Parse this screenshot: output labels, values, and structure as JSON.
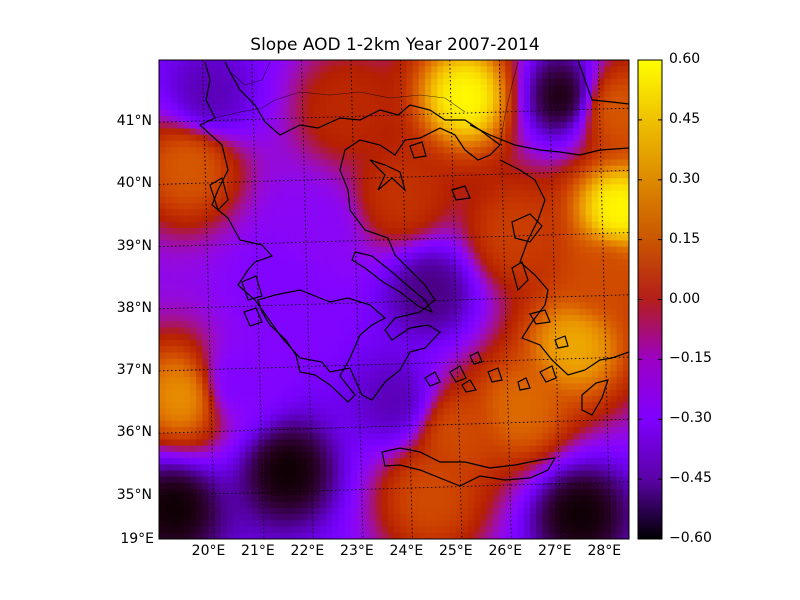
{
  "chart_data": {
    "type": "heatmap",
    "title": "Slope AOD 1-2km Year 2007-2014",
    "xlabel": "",
    "ylabel": "",
    "x_tick_labels": [
      "19°E",
      "20°E",
      "21°E",
      "22°E",
      "23°E",
      "24°E",
      "25°E",
      "26°E",
      "27°E",
      "28°E"
    ],
    "y_tick_labels": [
      "35°N",
      "36°N",
      "37°N",
      "38°N",
      "39°N",
      "40°N",
      "41°N"
    ],
    "x_range": [
      19.0,
      28.5
    ],
    "y_range": [
      34.3,
      42.0
    ],
    "colorbar": {
      "colormap": "gnuplot",
      "range": [
        -0.6,
        0.6
      ],
      "tick_labels": [
        "0.60",
        "0.45",
        "0.30",
        "0.15",
        "0.00",
        "−0.15",
        "−0.30",
        "−0.45",
        "−0.60"
      ]
    },
    "grid": true,
    "field_features": [
      {
        "lon": 19.3,
        "lat": 34.8,
        "value": -0.6
      },
      {
        "lon": 21.6,
        "lat": 35.4,
        "value": -0.6
      },
      {
        "lon": 27.5,
        "lat": 34.7,
        "value": -0.6
      },
      {
        "lon": 27.2,
        "lat": 41.4,
        "value": -0.6
      },
      {
        "lon": 20.0,
        "lat": 41.4,
        "value": -0.45
      },
      {
        "lon": 24.5,
        "lat": 38.3,
        "value": -0.5
      },
      {
        "lon": 23.8,
        "lat": 36.5,
        "value": -0.45
      },
      {
        "lon": 25.2,
        "lat": 41.4,
        "value": 0.6
      },
      {
        "lon": 28.3,
        "lat": 39.6,
        "value": 0.6
      },
      {
        "lon": 27.4,
        "lat": 37.4,
        "value": 0.45
      },
      {
        "lon": 19.5,
        "lat": 36.6,
        "value": 0.4
      },
      {
        "lon": 19.6,
        "lat": 40.3,
        "value": 0.25
      },
      {
        "lon": 25.0,
        "lat": 36.0,
        "value": 0.2
      },
      {
        "lon": 26.3,
        "lat": 36.4,
        "value": 0.3
      },
      {
        "lon": 23.9,
        "lat": 39.8,
        "value": 0.1
      },
      {
        "lon": 22.8,
        "lat": 41.2,
        "value": 0.05
      },
      {
        "lon": 26.2,
        "lat": 39.2,
        "value": 0.15
      },
      {
        "lon": 28.0,
        "lat": 38.5,
        "value": 0.2
      },
      {
        "lon": 28.2,
        "lat": 41.2,
        "value": 0.25
      },
      {
        "lon": 24.5,
        "lat": 35.0,
        "value": 0.2
      },
      {
        "lon": 21.5,
        "lat": 38.3,
        "value": -0.3
      },
      {
        "lon": 20.5,
        "lat": 36.8,
        "value": -0.3
      },
      {
        "lon": 22.2,
        "lat": 39.3,
        "value": -0.25
      }
    ],
    "background_value": -0.3
  }
}
